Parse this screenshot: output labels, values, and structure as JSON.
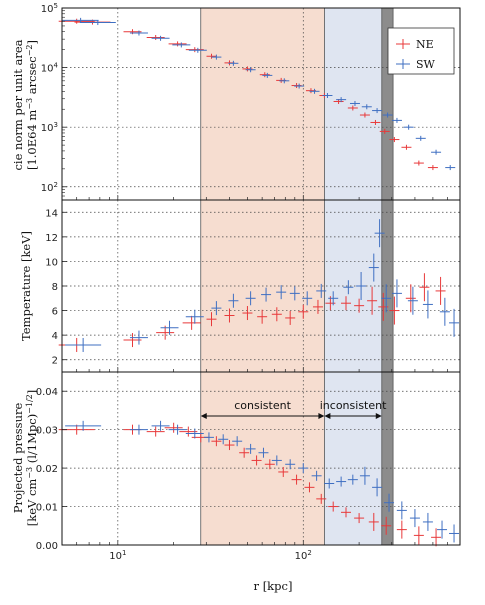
{
  "colors": {
    "NE": "#e8393a",
    "SW": "#3f6fc2",
    "band_consistent": "#f6ddd0",
    "band_inconsistent": "#dfe5f1",
    "band_edge": "#8c8c8c"
  },
  "chart_data": {
    "type": "scatter",
    "shared_x": {
      "label": "r [kpc]",
      "scale": "log",
      "range": [
        5,
        700
      ],
      "ticklabels": [
        {
          "base": "10",
          "exp": "1",
          "value": 10
        },
        {
          "base": "10",
          "exp": "2",
          "value": 100
        }
      ]
    },
    "bands": [
      {
        "name": "consistent",
        "x_range": [
          28,
          130
        ]
      },
      {
        "name": "inconsistent",
        "x_range": [
          130,
          265
        ]
      },
      {
        "name": "edge",
        "x_range": [
          265,
          305
        ]
      }
    ],
    "annotations": [
      {
        "text": "consistent",
        "arrow_x_range": [
          28,
          130
        ]
      },
      {
        "text": "inconsistent",
        "arrow_x_range": [
          130,
          265
        ]
      }
    ],
    "legend": {
      "position": "top-right",
      "entries": [
        "NE",
        "SW"
      ]
    },
    "panels": [
      {
        "id": "norm",
        "ylabel_line1": "cie norm per unit area",
        "ylabel_line2_pre": "[1.0E64 m",
        "ylabel_line2_exp1": "−3",
        "ylabel_line2_mid": " arcsec",
        "ylabel_line2_exp2": "−2",
        "ylabel_line2_post": "]",
        "yscale": "log",
        "ylim": [
          60,
          100000
        ],
        "ytick_labels": [
          {
            "base": "10",
            "exp": "2",
            "value": 100
          },
          {
            "base": "10",
            "exp": "3",
            "value": 1000
          },
          {
            "base": "10",
            "exp": "4",
            "value": 10000
          },
          {
            "base": "10",
            "exp": "5",
            "value": 100000
          }
        ],
        "series": [
          {
            "name": "NE",
            "x": [
              6,
              7.3,
              12,
              16,
              21,
              26,
              32,
              40,
              50,
              62,
              76,
              92,
              110,
              130,
              155,
              185,
              215,
              245,
              275,
              310,
              360,
              420,
              500
            ],
            "y": [
              60000,
              58000,
              40000,
              32000,
              25000,
              20000,
              15500,
              12000,
              9500,
              7600,
              6100,
              5000,
              4100,
              3400,
              2700,
              2100,
              1600,
              1200,
              850,
              620,
              460,
              250,
              210
            ]
          },
          {
            "name": "SW",
            "x": [
              6.3,
              7.8,
              13,
              17,
              22,
              27,
              34,
              42,
              52,
              64,
              79,
              95,
              115,
              135,
              160,
              190,
              220,
              250,
              285,
              320,
              370,
              430,
              520,
              620
            ],
            "y": [
              62000,
              57000,
              38000,
              31000,
              24000,
              19500,
              15000,
              11800,
              9200,
              7400,
              6000,
              4900,
              4000,
              3400,
              2900,
              2500,
              2200,
              1900,
              1600,
              1300,
              1000,
              650,
              380,
              210
            ]
          }
        ]
      },
      {
        "id": "temp",
        "ylabel": "Temperature [keV]",
        "yscale": "linear",
        "ylim": [
          1,
          15
        ],
        "yticks": [
          2,
          4,
          6,
          8,
          10,
          12,
          14
        ],
        "series": [
          {
            "name": "NE",
            "x": [
              6,
              12,
              18,
              25,
              32,
              40,
              50,
              60,
              72,
              85,
              100,
              120,
              140,
              170,
              200,
              235,
              270,
              310,
              380,
              450,
              550
            ],
            "y": [
              3.2,
              3.6,
              4.2,
              5.0,
              5.3,
              5.6,
              5.8,
              5.5,
              5.7,
              5.4,
              5.9,
              6.3,
              6.6,
              6.6,
              6.4,
              6.8,
              6.3,
              6.0,
              7.0,
              7.9,
              7.6
            ]
          },
          {
            "name": "SW",
            "x": [
              6.5,
              13,
              19,
              26,
              34,
              42,
              52,
              63,
              76,
              90,
              105,
              125,
              145,
              175,
              205,
              240,
              258,
              280,
              320,
              390,
              470,
              580,
              650
            ],
            "y": [
              3.2,
              3.8,
              4.6,
              5.5,
              6.2,
              6.8,
              7.0,
              7.3,
              7.5,
              7.4,
              7.0,
              7.6,
              7.0,
              7.9,
              8.0,
              9.5,
              12.3,
              7.0,
              7.4,
              6.8,
              6.5,
              5.9,
              5.0
            ]
          }
        ]
      },
      {
        "id": "pressure",
        "ylabel_line1": "Projected pressure",
        "ylabel_line2_pre": "[keV cm",
        "ylabel_line2_exp1": "−3",
        "ylabel_line2_mid": " (l/1Mpc)",
        "ylabel_line2_exp2": "−1/2",
        "ylabel_line2_post": "]",
        "yscale": "linear",
        "ylim": [
          0,
          0.045
        ],
        "yticks": [
          0.0,
          0.01,
          0.02,
          0.03,
          0.04
        ],
        "ytick_labels": [
          "0.00",
          "0.01",
          "0.02",
          "0.03",
          "0.04"
        ],
        "series": [
          {
            "name": "NE",
            "x": [
              6,
              12,
              16,
              20,
              24,
              28,
              34,
              40,
              48,
              56,
              66,
              78,
              92,
              108,
              125,
              145,
              170,
              200,
              240,
              280,
              340,
              420,
              520
            ],
            "y": [
              0.03,
              0.03,
              0.0295,
              0.0305,
              0.0295,
              0.028,
              0.027,
              0.026,
              0.024,
              0.022,
              0.021,
              0.019,
              0.017,
              0.015,
              0.012,
              0.01,
              0.0085,
              0.007,
              0.006,
              0.005,
              0.004,
              0.0025,
              0.002
            ]
          },
          {
            "name": "SW",
            "x": [
              6.5,
              13,
              17,
              21,
              26,
              31,
              37,
              44,
              52,
              61,
              72,
              85,
              100,
              118,
              138,
              160,
              185,
              215,
              250,
              290,
              340,
              400,
              470,
              560,
              650
            ],
            "y": [
              0.031,
              0.03,
              0.031,
              0.03,
              0.029,
              0.028,
              0.0275,
              0.027,
              0.025,
              0.024,
              0.022,
              0.021,
              0.02,
              0.018,
              0.016,
              0.0165,
              0.017,
              0.018,
              0.015,
              0.011,
              0.009,
              0.007,
              0.006,
              0.004,
              0.003
            ]
          }
        ]
      }
    ]
  }
}
